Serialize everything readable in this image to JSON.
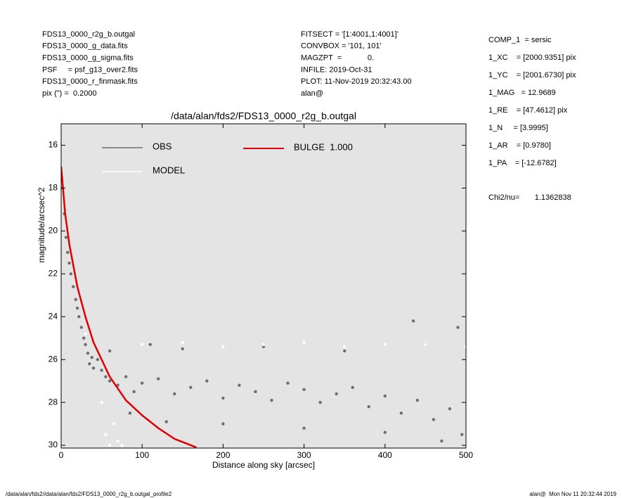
{
  "header": {
    "left": [
      "FDS13_0000_r2g_b.outgal",
      "FDS13_0000_g_data.fits",
      "FDS13_0000_g_sigma.fits",
      "PSF     = psf_g13_over2.fits",
      "FDS13_0000_r_finmask.fits",
      "pix (\") =  0.2000"
    ],
    "center": [
      "FITSECT = '[1:4001,1:4001]'",
      "CONVBOX = '101, 101'",
      "MAGZPT  =            0.",
      "INFILE: 2019-Oct-31",
      "PLOT: 11-Nov-2019 20:32:43.00",
      "alan@"
    ],
    "right": [
      "COMP_1  = sersic",
      "1_XC    = [2000.9351] pix",
      "1_YC    = [2001.6730] pix",
      "1_MAG   = 12.9689",
      "1_RE    = [47.4612] pix",
      "1_N     = [3.9995]",
      "1_AR    = [0.9780]",
      "1_PA    = [-12.6782]"
    ],
    "chi2": "Chi2/nu=       1.1362838"
  },
  "footer": {
    "left": "/data/alan/fds2//data/alan/fds2/FDS13_0000_r2g_b.outgal_profile2",
    "right": "alan@  Mon Nov 11 20:32:44 2019"
  },
  "chart_data": {
    "type": "scatter",
    "title": "/data/alan/fds2/FDS13_0000_r2g_b.outgal",
    "x_label": "Distance along sky [arcsec]",
    "y_label": "magnitude/arcsec^2",
    "xlim": [
      0,
      500
    ],
    "xticks": [
      0,
      100,
      200,
      300,
      400,
      500
    ],
    "ylim": [
      15,
      30.13
    ],
    "yticks": [
      16,
      18,
      20,
      22,
      24,
      26,
      28,
      30
    ],
    "y_inverted": true,
    "background": "#e4e4e4",
    "series": [
      {
        "name": "OBS",
        "color": "#6e6e6e",
        "mode": "markers",
        "x": [
          2,
          4,
          6,
          8,
          10,
          12,
          15,
          18,
          20,
          22,
          25,
          28,
          30,
          33,
          35,
          38,
          40,
          45,
          50,
          55,
          60,
          70,
          80,
          90,
          100,
          120,
          140,
          160,
          180,
          200,
          220,
          240,
          260,
          280,
          300,
          320,
          340,
          360,
          380,
          400,
          420,
          440,
          460,
          480,
          495,
          60,
          110,
          150,
          250,
          350,
          450,
          435,
          490,
          85,
          130,
          200,
          300,
          400,
          470
        ],
        "y": [
          18.0,
          19.2,
          20.3,
          21.0,
          21.5,
          22.0,
          22.6,
          23.2,
          23.6,
          24.0,
          24.5,
          25.0,
          25.3,
          25.7,
          26.2,
          25.9,
          26.4,
          26.0,
          26.5,
          26.8,
          27.0,
          27.2,
          26.8,
          27.5,
          27.1,
          26.9,
          27.6,
          27.3,
          27.0,
          27.8,
          27.2,
          27.5,
          27.9,
          27.1,
          27.4,
          28.0,
          27.6,
          27.3,
          28.2,
          27.7,
          28.5,
          27.9,
          28.8,
          28.3,
          29.5,
          25.6,
          25.3,
          25.5,
          25.4,
          25.6,
          25.3,
          24.2,
          24.5,
          28.5,
          28.9,
          29.0,
          29.2,
          29.4,
          29.8
        ]
      },
      {
        "name": "MODEL",
        "color": "#ffffff",
        "mode": "markers",
        "x": [
          50,
          55,
          60,
          65,
          70,
          75,
          100,
          150,
          200,
          250,
          300,
          350,
          400,
          450,
          500,
          30
        ],
        "y": [
          28.0,
          29.5,
          30.0,
          29.0,
          29.8,
          30.0,
          25.3,
          25.2,
          25.4,
          25.3,
          25.2,
          25.4,
          25.3,
          25.3,
          25.4,
          24.8
        ]
      },
      {
        "name": "BULGE  1.000",
        "color": "#e00000",
        "mode": "line",
        "x": [
          0,
          5,
          10,
          20,
          30,
          40,
          60,
          80,
          100,
          120,
          140,
          167
        ],
        "y": [
          17.0,
          19.2,
          20.6,
          22.6,
          24.0,
          25.2,
          26.8,
          27.9,
          28.6,
          29.2,
          29.7,
          30.1
        ]
      }
    ]
  }
}
